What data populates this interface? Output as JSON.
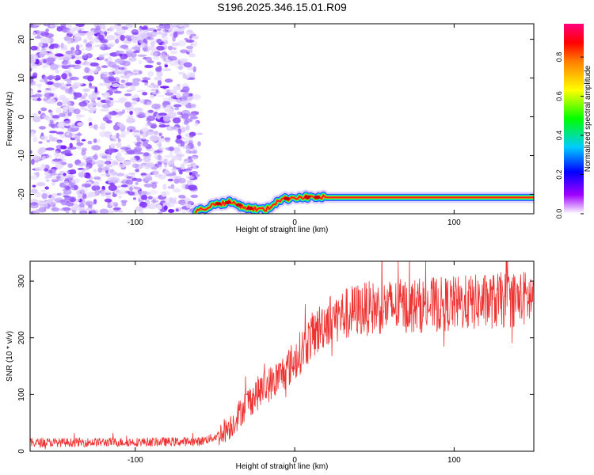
{
  "title": "S196.2025.346.15.01.R09",
  "chart_data": [
    {
      "type": "heatmap",
      "xlabel": "Height of straight line (km)",
      "ylabel": "Frequency (Hz)",
      "xlim": [
        -166,
        150
      ],
      "ylim": [
        -25,
        24
      ],
      "xticks": [
        "-100",
        "0",
        "100"
      ],
      "xtick_values": [
        -100,
        0,
        100
      ],
      "yticks": [
        "20",
        "10",
        "0",
        "-10",
        "-20"
      ],
      "ytick_values": [
        20,
        10,
        0,
        -10,
        -20
      ],
      "colorbar": {
        "label": "Normalized spectral amplitude",
        "range": [
          0,
          0.97
        ],
        "ticks": [
          "0.0",
          "0.2",
          "0.4",
          "0.6",
          "0.8"
        ],
        "tick_values": [
          0.0,
          0.2,
          0.4,
          0.6,
          0.8
        ]
      },
      "features": [
        {
          "name": "noise-field",
          "x_range": [
            -166,
            -62
          ],
          "freq_range": [
            -25,
            24
          ],
          "amplitude_range": [
            0.05,
            0.25
          ]
        },
        {
          "name": "carrier-line",
          "x_range": [
            -62,
            150
          ],
          "freq": -20.8,
          "amplitude_peak": 0.97,
          "trace": [
            [
              -62,
              -24.5
            ],
            [
              -50,
              -22.5
            ],
            [
              -40,
              -22.0
            ],
            [
              -30,
              -23.5
            ],
            [
              -18,
              -24.0
            ],
            [
              -10,
              -21.5
            ],
            [
              0,
              -20.7
            ],
            [
              20,
              -20.8
            ],
            [
              150,
              -20.8
            ]
          ]
        }
      ]
    },
    {
      "type": "line",
      "xlabel": "Height of straight line (km)",
      "ylabel": "SNR (10 * v/v)",
      "xlim": [
        -166,
        150
      ],
      "ylim": [
        0,
        335
      ],
      "xticks": [
        "-100",
        "0",
        "100"
      ],
      "xtick_values": [
        -100,
        0,
        100
      ],
      "yticks": [
        "0",
        "100",
        "200",
        "300"
      ],
      "ytick_values": [
        0,
        100,
        200,
        300
      ],
      "series": [
        {
          "name": "SNR",
          "color": "#ee3333",
          "envelope": {
            "x": [
              -166,
              -60,
              -50,
              -40,
              -30,
              -20,
              -10,
              0,
              10,
              20,
              40,
              60,
              100,
              150
            ],
            "y": [
              15,
              17,
              25,
              45,
              85,
              110,
              130,
              160,
              200,
              230,
              250,
              255,
              260,
              270
            ]
          },
          "noise": 18
        }
      ]
    }
  ]
}
